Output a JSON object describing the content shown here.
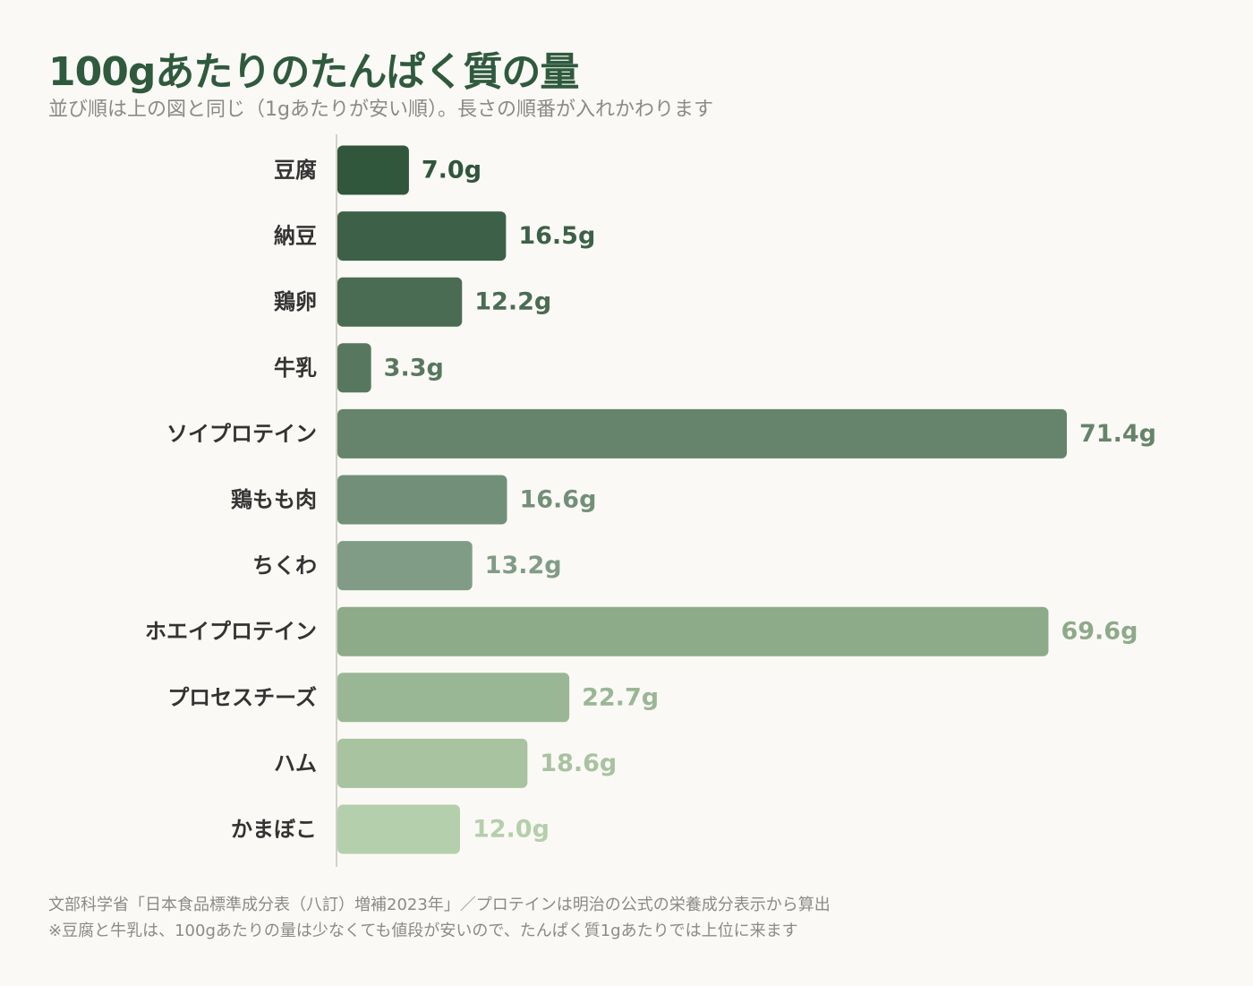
{
  "title": "100gあたりのたんぱく質の量",
  "subtitle": "並び順は上の図と同じ（1gあたりが安い順）。長さの順番が入れかわります",
  "footnotes": [
    "文部科学省「日本食品標準成分表（八訂）増補2023年」／プロテインは明治の公式の栄養成分表示から算出",
    "※豆腐と牛乳は、100gあたりの量は少なくても値段が安いので、たんぱく質1gあたりでは上位に来ます"
  ],
  "chart_data": {
    "type": "bar",
    "orientation": "horizontal",
    "categories": [
      "豆腐",
      "納豆",
      "鶏卵",
      "牛乳",
      "ソイプロテイン",
      "鶏もも肉",
      "ちくわ",
      "ホエイプロテイン",
      "プロセスチーズ",
      "ハム",
      "かまぼこ"
    ],
    "values": [
      7.0,
      16.5,
      12.2,
      3.3,
      71.4,
      16.6,
      13.2,
      69.6,
      22.7,
      18.6,
      12.0
    ],
    "value_labels": [
      "7.0g",
      "16.5g",
      "12.2g",
      "3.3g",
      "71.4g",
      "16.6g",
      "13.2g",
      "69.6g",
      "22.7g",
      "18.6g",
      "12.0g"
    ],
    "colors": [
      "#30563c",
      "#3d6148",
      "#4a6c53",
      "#57785f",
      "#65846b",
      "#729079",
      "#809c86",
      "#8daa89",
      "#9ab795",
      "#a7c39f",
      "#b4cfac"
    ],
    "xlim": [
      0,
      75
    ],
    "grid": false,
    "legend": "none"
  }
}
